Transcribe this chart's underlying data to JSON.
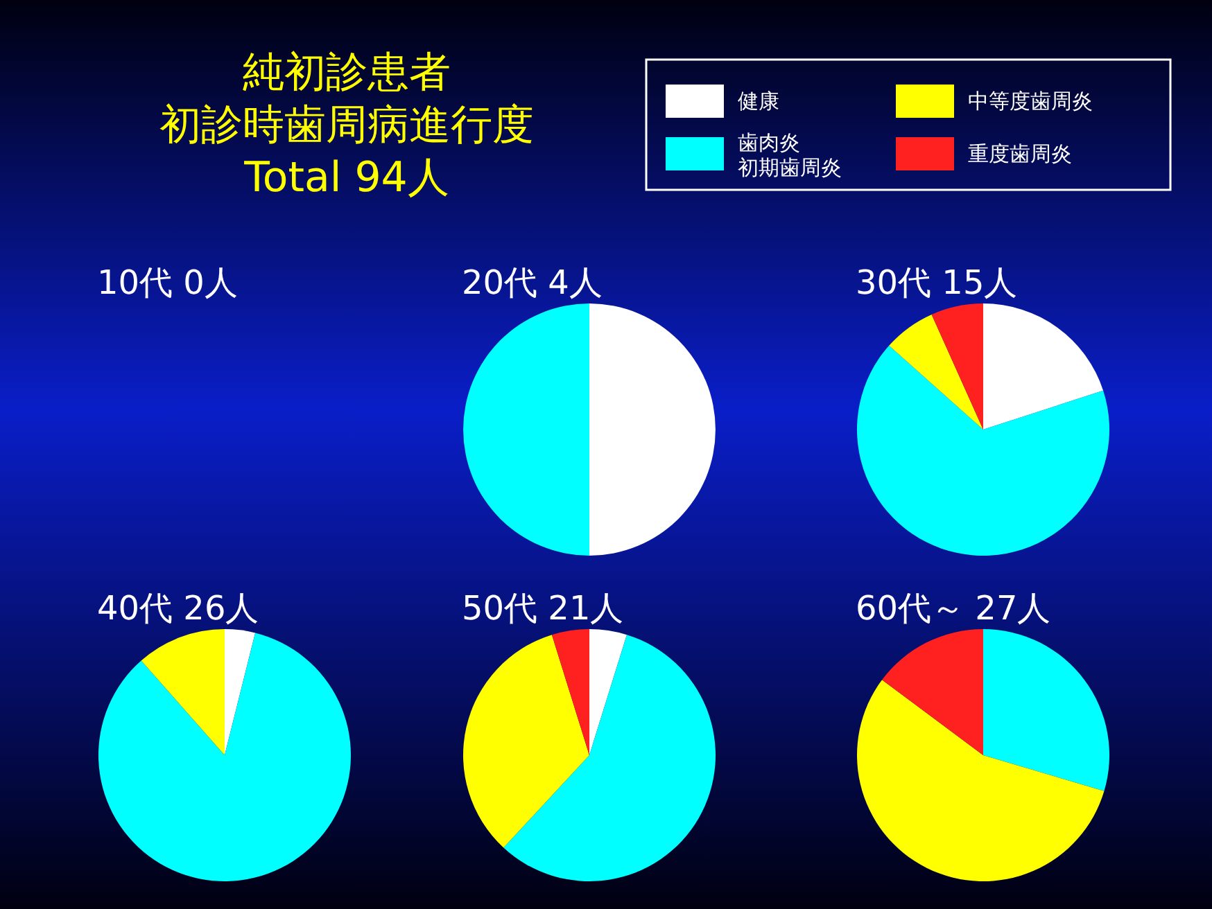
{
  "chart_data": [
    {
      "type": "other",
      "title": "純初診患者",
      "subtitle": "初診時歯周病進行度",
      "annotations": [
        "Total  94人"
      ]
    },
    {
      "type": "other",
      "title": "10代  0人"
    },
    {
      "type": "pie",
      "title": "20代  4人",
      "categories": [
        null,
        null
      ],
      "values": [
        50,
        50
      ],
      "colors": [
        "#ffffff",
        "#00ffff"
      ]
    },
    {
      "type": "pie",
      "title": "30代  15人",
      "categories": [
        "健康",
        "歯肉炎初期歯周炎",
        "中等度歯周炎",
        "重度歯周炎"
      ],
      "values": [
        20,
        66.6,
        6.7,
        6.7
      ],
      "colors": [
        "#ffffff",
        "#00ffff",
        "#ffff00",
        "#ff2020"
      ],
      "legend": "top"
    },
    {
      "type": "pie",
      "title": "40代  26人",
      "categories": [
        null,
        null,
        null
      ],
      "values": [
        3.9,
        84.6,
        11.5
      ],
      "colors": [
        "#ffffff",
        "#00ffff",
        "#ffff00"
      ]
    },
    {
      "type": "pie",
      "title": "50代  21人",
      "categories": [
        null,
        null,
        null,
        null
      ],
      "values": [
        4.8,
        57.1,
        33.3,
        4.8
      ],
      "colors": [
        "#ffffff",
        "#00ffff",
        "#ffff00",
        "#ff2020"
      ]
    },
    {
      "type": "pie",
      "title": "60代～ 27人",
      "categories": [
        null,
        null,
        null
      ],
      "values": [
        29.6,
        55.6,
        14.8
      ],
      "colors": [
        "#00ffff",
        "#ffff00",
        "#ff2020"
      ]
    }
  ]
}
